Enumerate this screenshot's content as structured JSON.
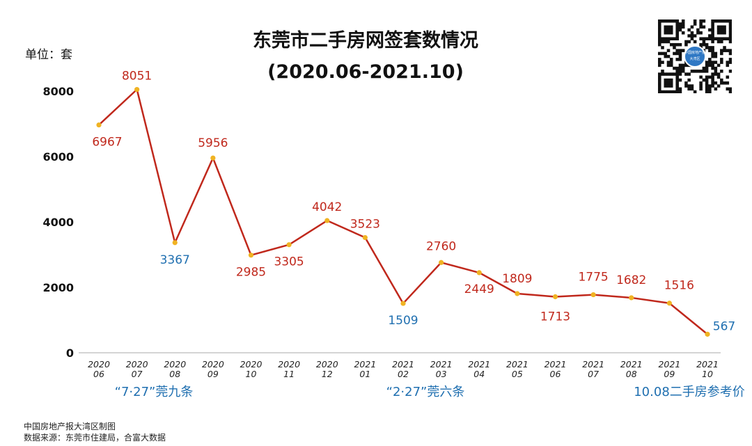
{
  "title": "东莞市二手房网签套数情况",
  "subtitle": "(2020.06-2021.10)",
  "unit_label": "单位：套",
  "footer": [
    "中国房地产报大湾区制图",
    "数据来源：东莞市住建局，合富大数据"
  ],
  "qr_code_logo_text": "中国房地产报 大湾区",
  "colors": {
    "line": "#c0281c",
    "marker": "#f0b323",
    "label_red": "#c0281c",
    "label_blue": "#1f6fb0",
    "axis": "#aaaaaa"
  },
  "chart_data": {
    "type": "line",
    "title": "东莞市二手房网签套数情况",
    "ylabel": "单位：套",
    "ylim": [
      0,
      8000
    ],
    "yticks": [
      0,
      2000,
      4000,
      6000,
      8000
    ],
    "grid": false,
    "categories": [
      [
        "2020",
        "06"
      ],
      [
        "2020",
        "07"
      ],
      [
        "2020",
        "08"
      ],
      [
        "2020",
        "09"
      ],
      [
        "2020",
        "10"
      ],
      [
        "2020",
        "11"
      ],
      [
        "2020",
        "12"
      ],
      [
        "2021",
        "01"
      ],
      [
        "2021",
        "02"
      ],
      [
        "2021",
        "03"
      ],
      [
        "2021",
        "04"
      ],
      [
        "2021",
        "05"
      ],
      [
        "2021",
        "06"
      ],
      [
        "2021",
        "07"
      ],
      [
        "2021",
        "08"
      ],
      [
        "2021",
        "09"
      ],
      [
        "2021",
        "10"
      ]
    ],
    "values": [
      6967,
      8051,
      3367,
      5956,
      2985,
      3305,
      4042,
      3523,
      1509,
      2760,
      2449,
      1809,
      1713,
      1775,
      1682,
      1516,
      567
    ],
    "label_colors": [
      "red",
      "red",
      "blue",
      "red",
      "red",
      "red",
      "red",
      "red",
      "blue",
      "red",
      "red",
      "red",
      "red",
      "red",
      "red",
      "red",
      "blue"
    ],
    "annotations": [
      {
        "text": "“7·27”莞九条",
        "near": "2020-07/08"
      },
      {
        "text": "“2·27”莞六条",
        "near": "2021-02/03"
      },
      {
        "text": "10.08二手房参考价",
        "near": "2021-10"
      }
    ]
  }
}
